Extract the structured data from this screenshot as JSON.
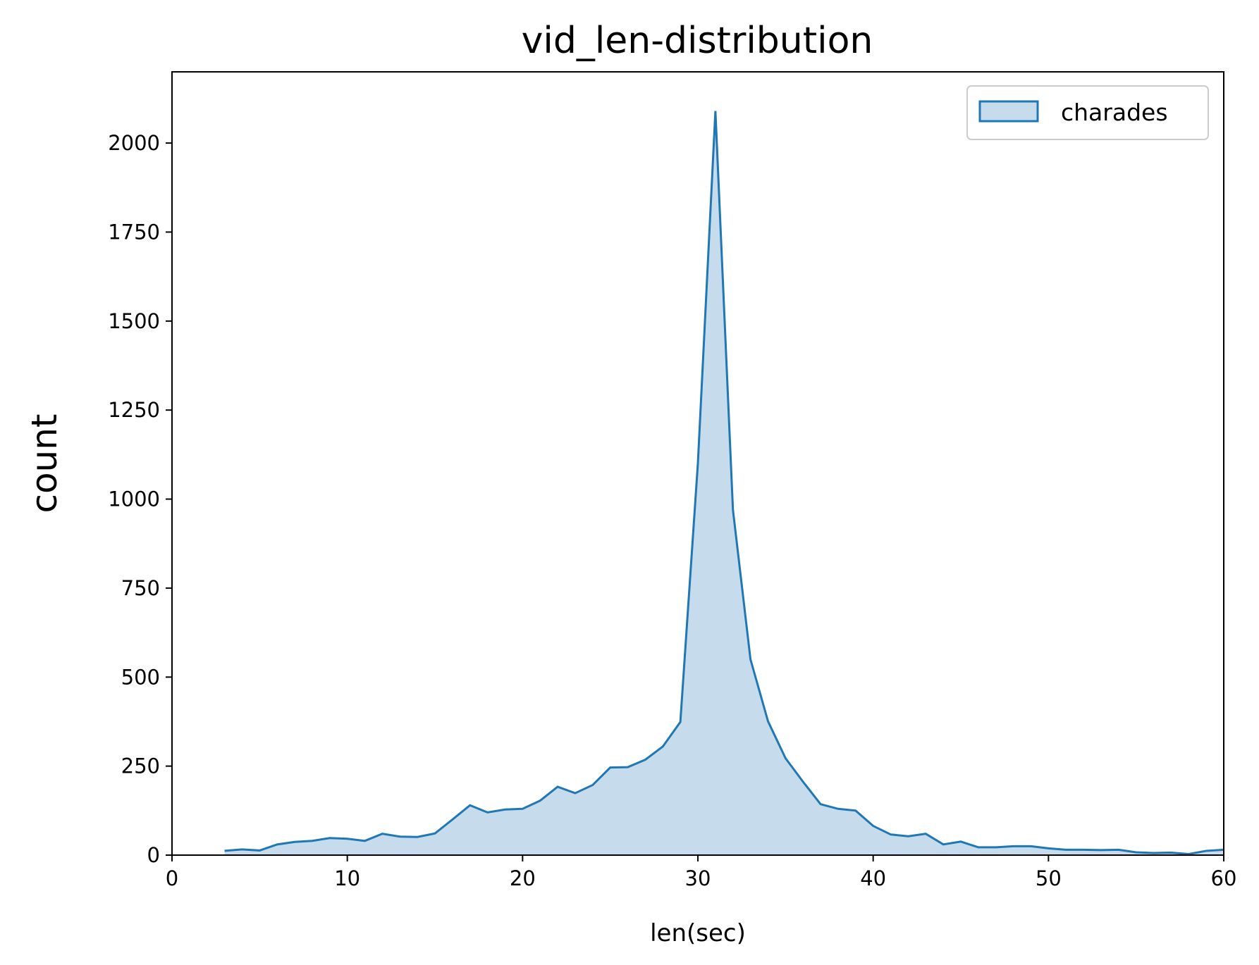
{
  "chart_data": {
    "type": "area",
    "title": "vid_len-distribution",
    "xlabel": "len(sec)",
    "ylabel": "count",
    "xlim": [
      0,
      60
    ],
    "ylim": [
      0,
      2200
    ],
    "xticks": [
      0,
      10,
      20,
      30,
      40,
      50,
      60
    ],
    "yticks": [
      0,
      250,
      500,
      750,
      1000,
      1250,
      1500,
      1750,
      2000
    ],
    "grid": false,
    "legend_position": "top-right",
    "colors": {
      "line": "#1f77b4",
      "fill": "#c6dcec"
    },
    "series": [
      {
        "name": "charades",
        "x": [
          3,
          4,
          5,
          6,
          7,
          8,
          9,
          10,
          11,
          12,
          13,
          14,
          15,
          16,
          17,
          18,
          19,
          20,
          21,
          22,
          23,
          24,
          25,
          26,
          27,
          28,
          29,
          30,
          31,
          32,
          33,
          34,
          35,
          36,
          37,
          38,
          39,
          40,
          41,
          42,
          43,
          44,
          45,
          46,
          47,
          48,
          49,
          50,
          51,
          52,
          53,
          54,
          55,
          56,
          57,
          58,
          59,
          60
        ],
        "y": [
          12,
          16,
          13,
          30,
          37,
          40,
          48,
          46,
          40,
          60,
          52,
          51,
          61,
          100,
          140,
          120,
          128,
          130,
          153,
          192,
          174,
          197,
          246,
          247,
          268,
          305,
          374,
          1100,
          2090,
          970,
          550,
          376,
          272,
          206,
          143,
          130,
          125,
          82,
          58,
          53,
          60,
          30,
          38,
          22,
          22,
          25,
          25,
          19,
          15,
          15,
          14,
          15,
          8,
          6,
          7,
          3,
          12,
          15
        ]
      }
    ]
  }
}
